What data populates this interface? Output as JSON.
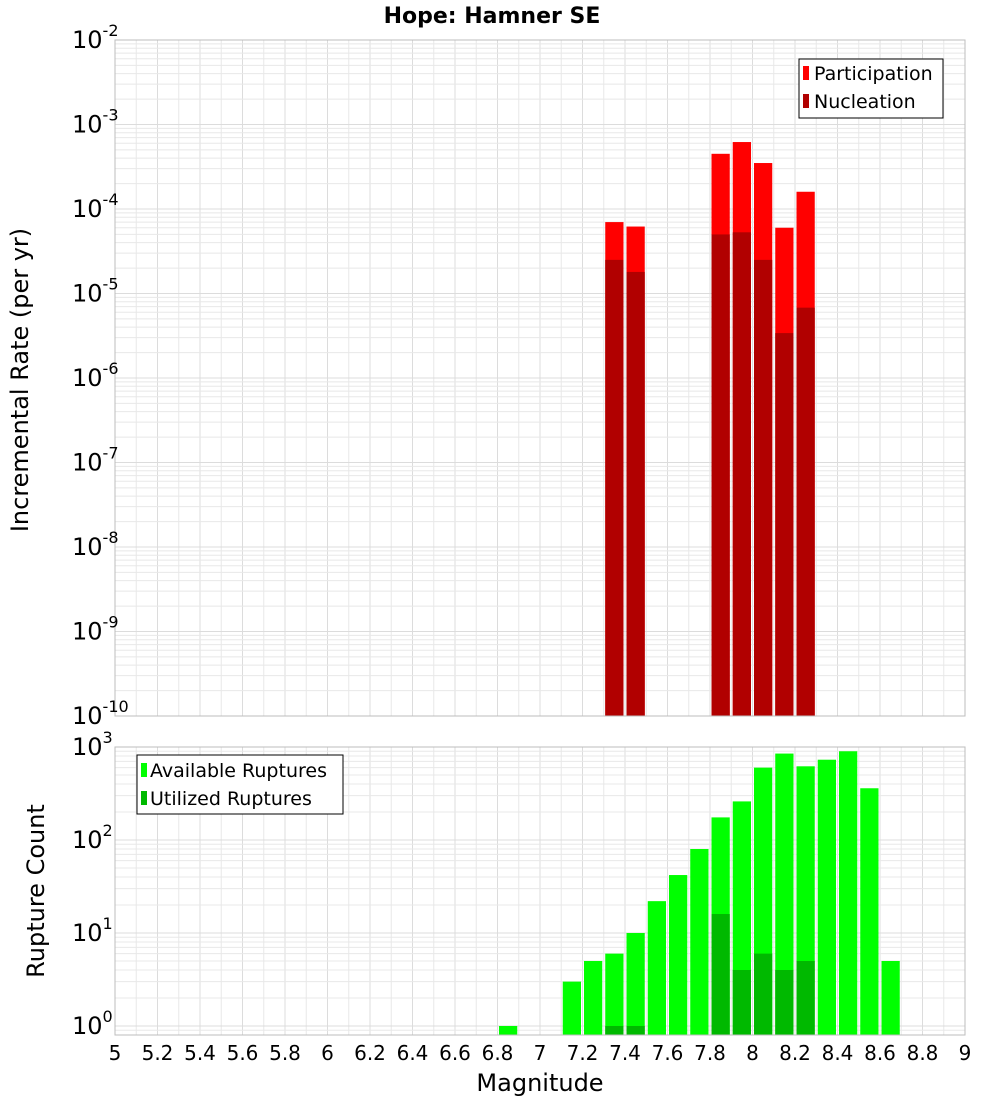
{
  "colors": {
    "participation": "#ff0000",
    "nucleation": "#b10000",
    "available": "#00ff00",
    "utilized": "#00b900",
    "grid_minor": "#e8e8e8",
    "grid_major": "#dcdcdc",
    "frame": "#bdbdbd"
  },
  "chart_data": [
    {
      "type": "bar",
      "title": "Hope: Hamner SE",
      "ylabel": "Incremental Rate (per yr)",
      "xlabel": "",
      "yscale": "log",
      "ylim_exponents": [
        -10,
        -2
      ],
      "xlim": [
        5,
        9
      ],
      "bin_width": 0.1,
      "grid": true,
      "legend_position": "top-right",
      "series": [
        {
          "name": "Participation",
          "x": [
            7.35,
            7.45,
            7.85,
            7.95,
            8.05,
            8.15,
            8.25
          ],
          "values": [
            7e-05,
            6.2e-05,
            0.00045,
            0.00062,
            0.00035,
            6e-05,
            0.00016
          ]
        },
        {
          "name": "Nucleation",
          "x": [
            7.35,
            7.45,
            7.85,
            7.95,
            8.05,
            8.15,
            8.25
          ],
          "values": [
            2.5e-05,
            1.8e-05,
            5e-05,
            5.3e-05,
            2.5e-05,
            3.4e-06,
            6.8e-06
          ]
        }
      ],
      "y_tick_exponents": [
        -10,
        -9,
        -8,
        -7,
        -6,
        -5,
        -4,
        -3,
        -2
      ]
    },
    {
      "type": "bar",
      "title": "",
      "ylabel": "Rupture Count",
      "xlabel": "Magnitude",
      "yscale": "log",
      "ylim": [
        0.8,
        1000
      ],
      "xlim": [
        5,
        9
      ],
      "bin_width": 0.1,
      "grid": true,
      "legend_position": "top-left",
      "series": [
        {
          "name": "Available Ruptures",
          "x": [
            6.85,
            7.15,
            7.25,
            7.35,
            7.45,
            7.55,
            7.65,
            7.75,
            7.85,
            7.95,
            8.05,
            8.15,
            8.25,
            8.35,
            8.45,
            8.55,
            8.65
          ],
          "values": [
            1,
            3,
            5,
            6,
            10,
            22,
            42,
            80,
            175,
            260,
            600,
            850,
            620,
            730,
            900,
            360,
            5
          ]
        },
        {
          "name": "Utilized Ruptures",
          "x": [
            7.35,
            7.45,
            7.85,
            7.95,
            8.05,
            8.15,
            8.25
          ],
          "values": [
            1,
            1,
            16,
            4,
            6,
            4,
            5
          ]
        }
      ],
      "x_ticks": [
        "5",
        "5.2",
        "5.4",
        "5.6",
        "5.8",
        "6",
        "6.2",
        "6.4",
        "6.6",
        "6.8",
        "7",
        "7.2",
        "7.4",
        "7.6",
        "7.8",
        "8",
        "8.2",
        "8.4",
        "8.6",
        "8.8",
        "9"
      ],
      "y_tick_exponents": [
        0,
        1,
        2,
        3
      ]
    }
  ]
}
